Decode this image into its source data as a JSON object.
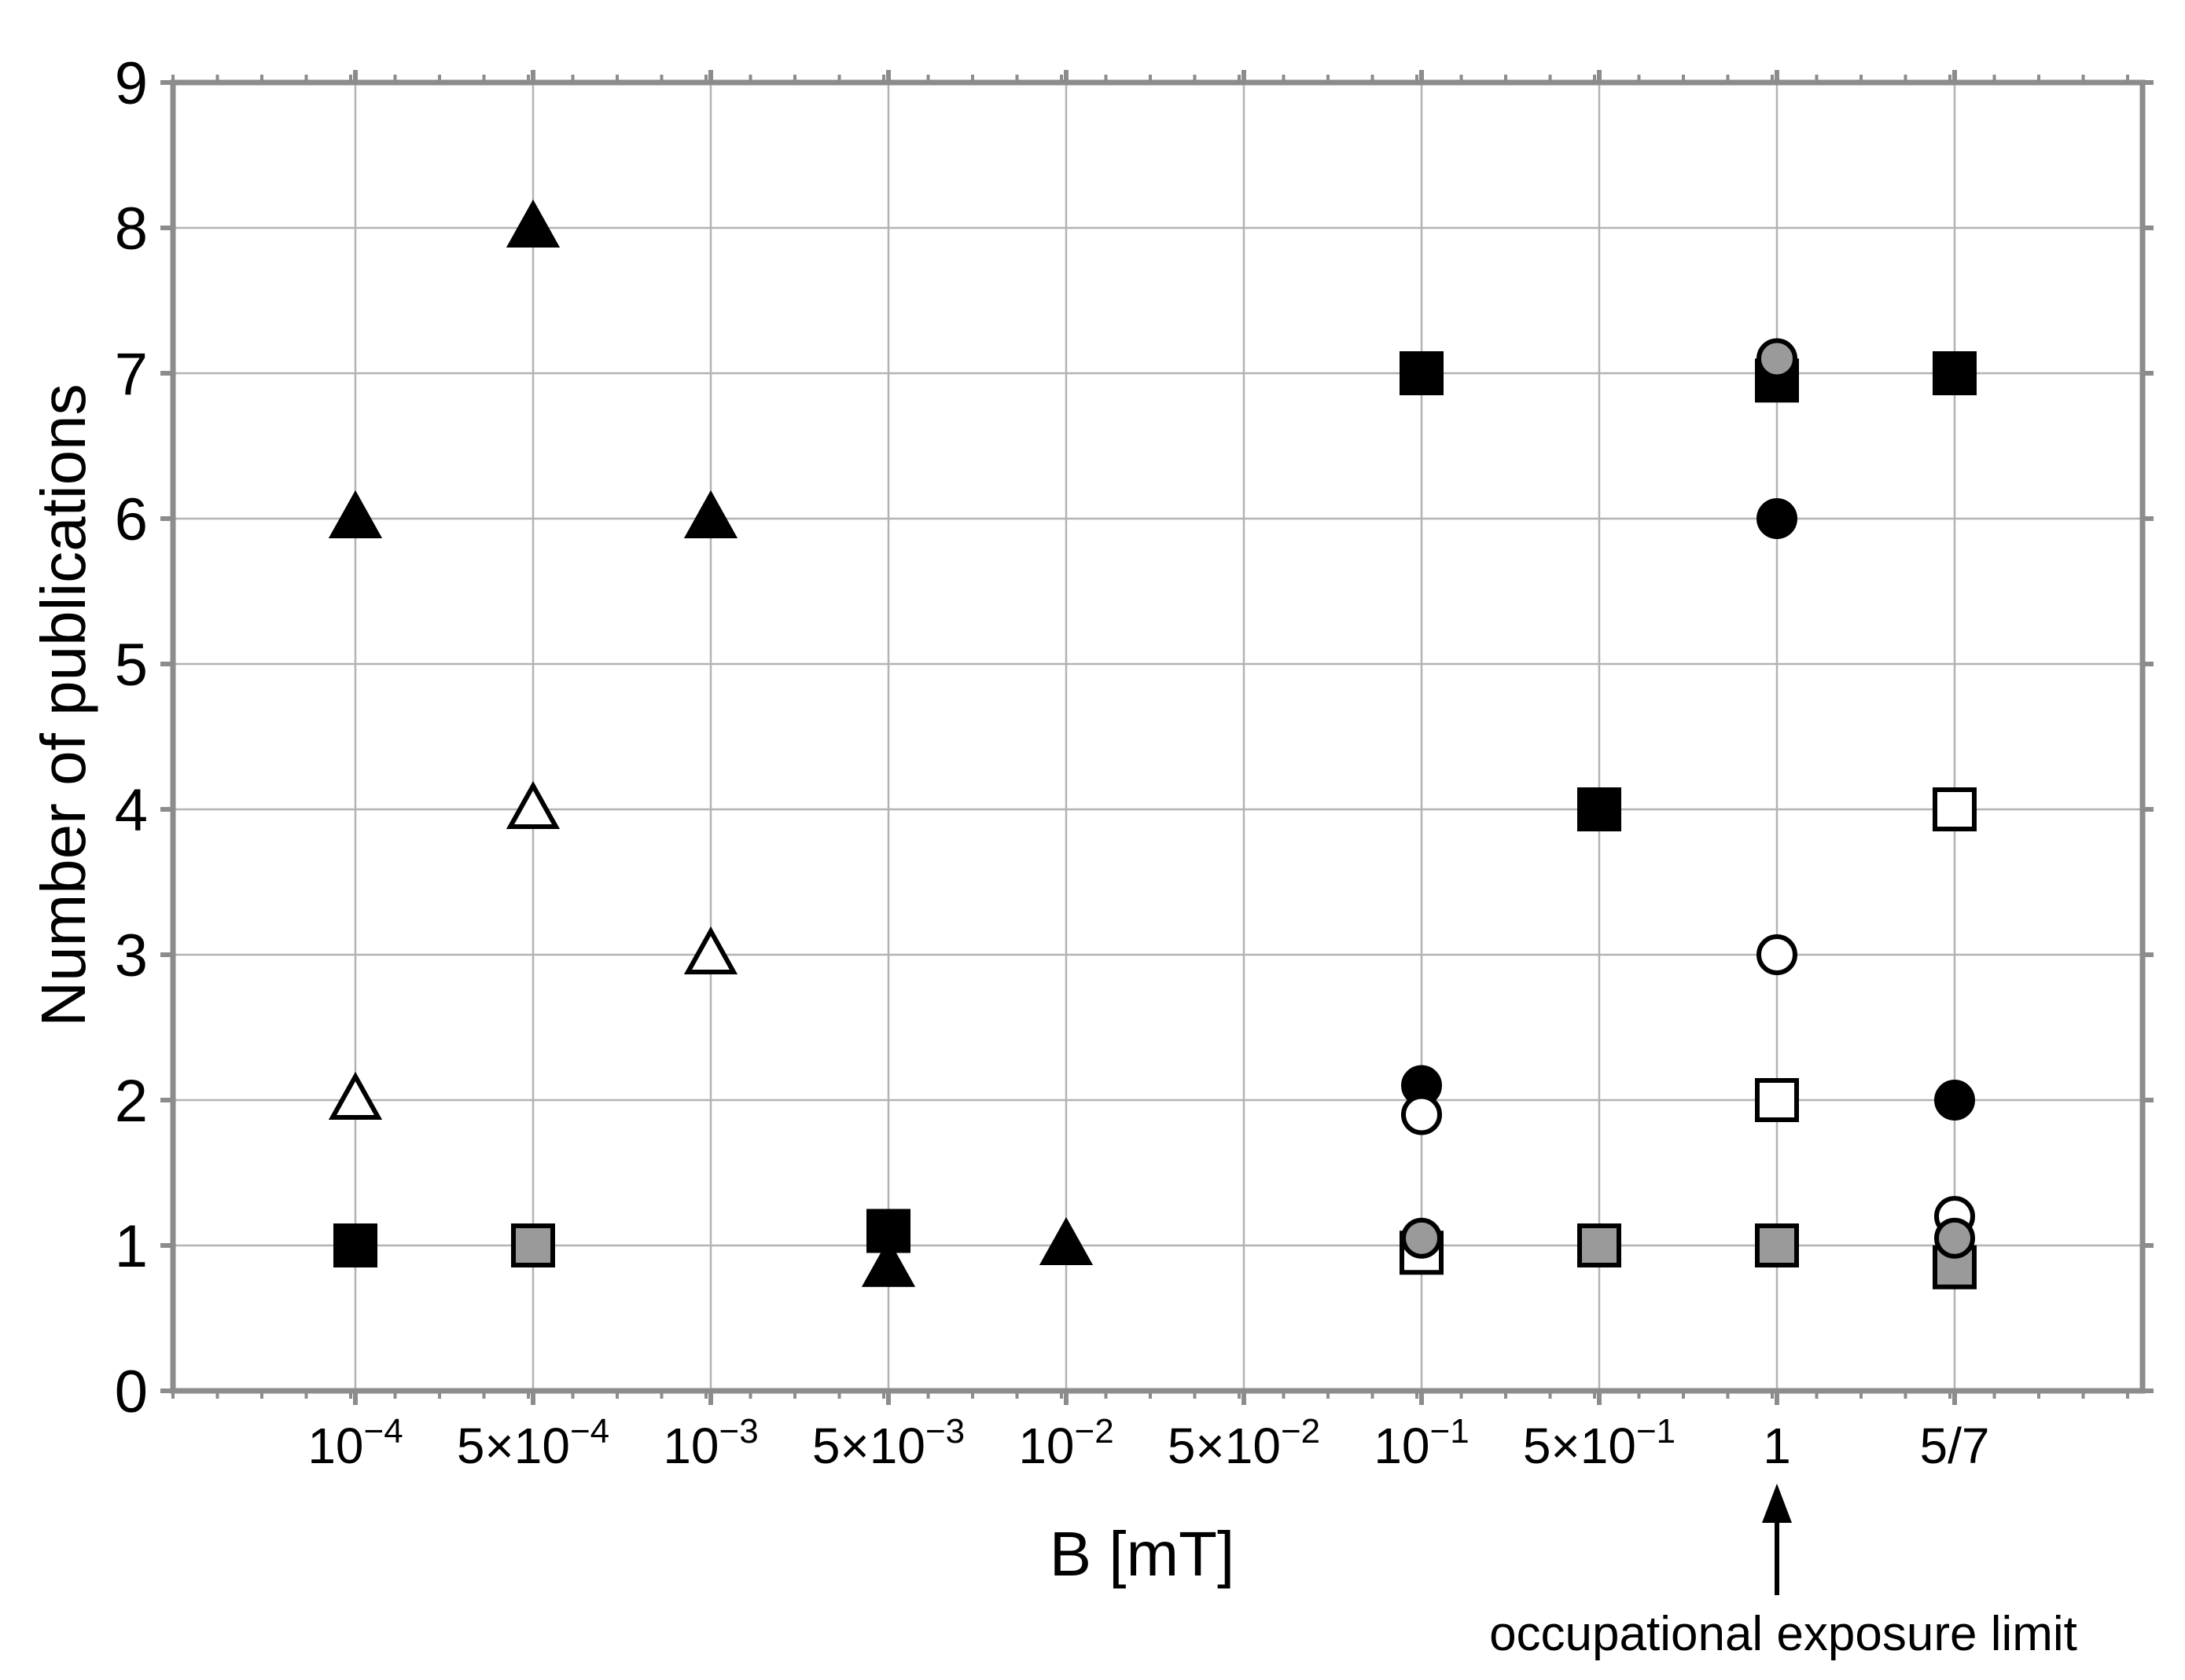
{
  "chart_data": {
    "type": "scatter",
    "xlabel": "B [mT]",
    "ylabel": "Number of publications",
    "ylim": [
      0,
      9
    ],
    "y_ticks": [
      "0",
      "1",
      "2",
      "3",
      "4",
      "5",
      "6",
      "7",
      "8",
      "9"
    ],
    "x_categories": [
      {
        "base": "10",
        "exp": "−4"
      },
      {
        "base": "5×10",
        "exp": "−4"
      },
      {
        "base": "10",
        "exp": "−3"
      },
      {
        "base": "5×10",
        "exp": "−3"
      },
      {
        "base": "10",
        "exp": "−2"
      },
      {
        "base": "5×10",
        "exp": "−2"
      },
      {
        "base": "10",
        "exp": "−1"
      },
      {
        "base": "5×10",
        "exp": "−1"
      },
      {
        "base": "1",
        "exp": ""
      },
      {
        "base": "5/7",
        "exp": ""
      }
    ],
    "grid": true,
    "annotation": {
      "text": "occupational exposure limit",
      "category_index": 8
    },
    "colors": {
      "black": "#000000",
      "gray": "#9a9a9a",
      "white": "#ffffff",
      "grid": "#b3b3b3",
      "axis": "#8c8c8c"
    },
    "series": [
      {
        "marker": "triangle",
        "fill": "black",
        "points": [
          [
            0,
            6
          ],
          [
            1,
            8
          ],
          [
            2,
            6
          ],
          [
            3,
            0.85
          ],
          [
            4,
            1
          ]
        ]
      },
      {
        "marker": "triangle",
        "fill": "white",
        "points": [
          [
            0,
            2
          ],
          [
            1,
            4
          ],
          [
            2,
            3
          ]
        ]
      },
      {
        "marker": "square",
        "fill": "black",
        "points": [
          [
            0,
            1
          ],
          [
            3,
            1.1
          ],
          [
            6,
            7
          ],
          [
            7,
            4
          ],
          [
            8,
            6.95
          ],
          [
            9,
            7
          ]
        ]
      },
      {
        "marker": "square",
        "fill": "gray",
        "points": [
          [
            1,
            1
          ],
          [
            7,
            1
          ],
          [
            8,
            1
          ],
          [
            9,
            0.85
          ]
        ]
      },
      {
        "marker": "square",
        "fill": "white",
        "points": [
          [
            6,
            0.95
          ],
          [
            8,
            2
          ],
          [
            9,
            4
          ]
        ]
      },
      {
        "marker": "circle",
        "fill": "black",
        "points": [
          [
            6,
            2.1
          ],
          [
            8,
            6
          ],
          [
            9,
            2
          ]
        ]
      },
      {
        "marker": "circle",
        "fill": "white",
        "points": [
          [
            6,
            1.9
          ],
          [
            8,
            3
          ],
          [
            9,
            1.2
          ]
        ]
      },
      {
        "marker": "circle",
        "fill": "gray",
        "points": [
          [
            6,
            1.05
          ],
          [
            8,
            7.1
          ],
          [
            9,
            1.05
          ]
        ]
      }
    ]
  }
}
